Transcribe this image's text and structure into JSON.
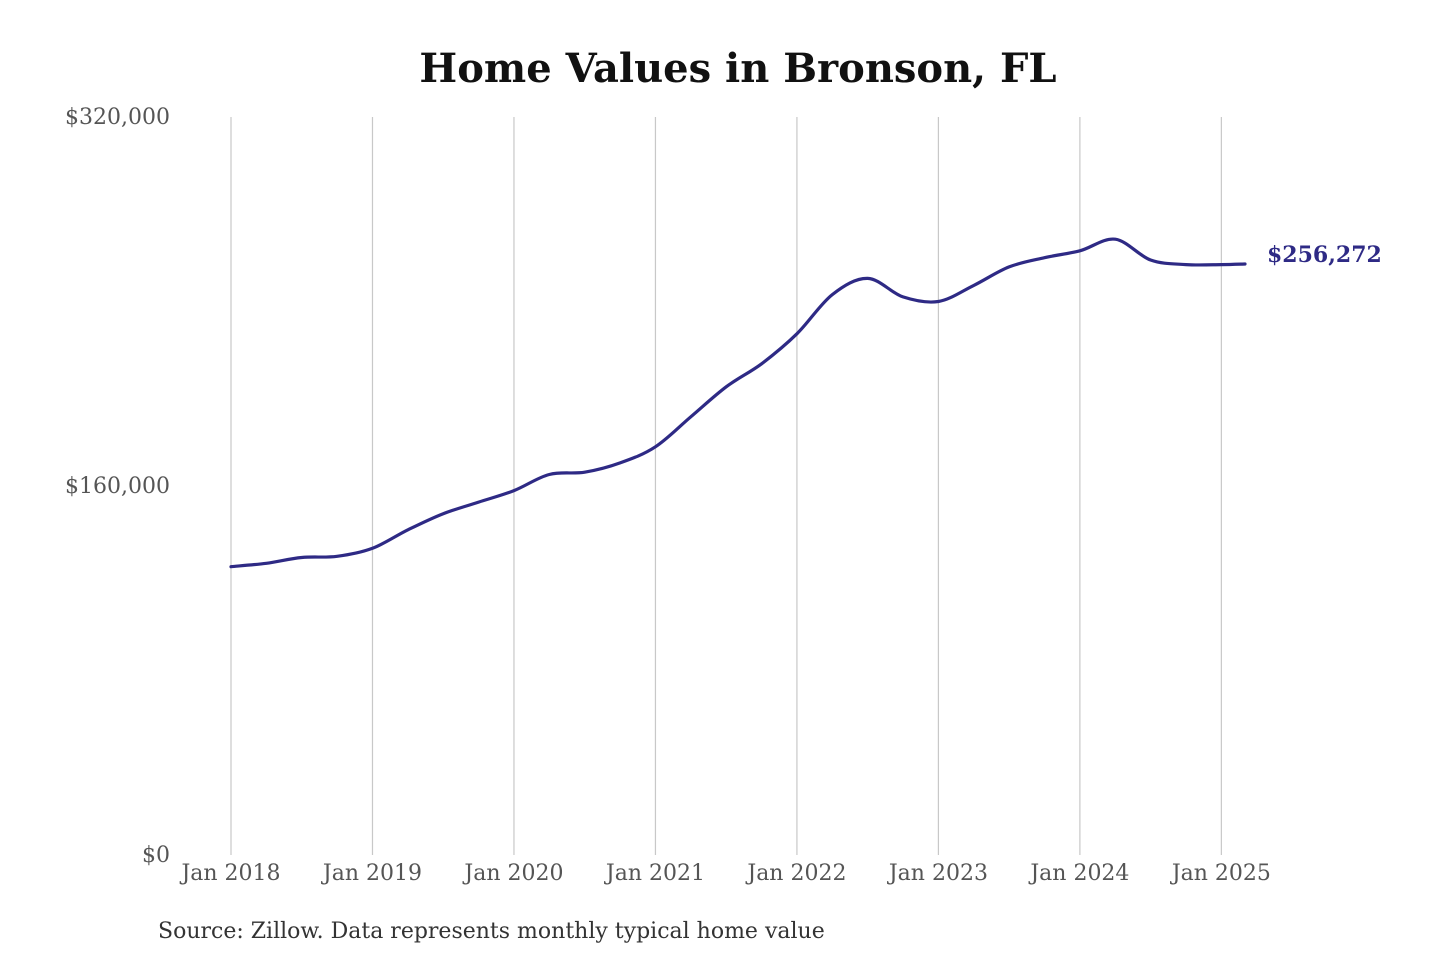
{
  "chart_data": {
    "type": "line",
    "title": "Home Values in Bronson, FL",
    "source": "Source: Zillow. Data represents monthly typical home value",
    "xlabel": "",
    "ylabel": "",
    "ylim": [
      0,
      320000
    ],
    "yticks": [
      {
        "value": 0,
        "label": "$0"
      },
      {
        "value": 160000,
        "label": "$160,000"
      },
      {
        "value": 320000,
        "label": "$320,000"
      }
    ],
    "xticks": [
      {
        "value": 2018.0,
        "label": "Jan 2018"
      },
      {
        "value": 2019.0,
        "label": "Jan 2019"
      },
      {
        "value": 2020.0,
        "label": "Jan 2020"
      },
      {
        "value": 2021.0,
        "label": "Jan 2021"
      },
      {
        "value": 2022.0,
        "label": "Jan 2022"
      },
      {
        "value": 2023.0,
        "label": "Jan 2023"
      },
      {
        "value": 2024.0,
        "label": "Jan 2024"
      },
      {
        "value": 2025.0,
        "label": "Jan 2025"
      }
    ],
    "xlim": [
      2018.0,
      2025.167
    ],
    "grid": "vertical",
    "line_color": "#2e2a85",
    "end_label": "$256,272",
    "series": [
      {
        "points": [
          [
            2018.0,
            125000
          ],
          [
            2018.25,
            126500
          ],
          [
            2018.5,
            129000
          ],
          [
            2018.75,
            129500
          ],
          [
            2019.0,
            133000
          ],
          [
            2019.25,
            141000
          ],
          [
            2019.5,
            148000
          ],
          [
            2019.75,
            153000
          ],
          [
            2020.0,
            158000
          ],
          [
            2020.25,
            165000
          ],
          [
            2020.5,
            166000
          ],
          [
            2020.75,
            170000
          ],
          [
            2021.0,
            177000
          ],
          [
            2021.25,
            190000
          ],
          [
            2021.5,
            203000
          ],
          [
            2021.75,
            213000
          ],
          [
            2022.0,
            226000
          ],
          [
            2022.25,
            243000
          ],
          [
            2022.5,
            250000
          ],
          [
            2022.75,
            242000
          ],
          [
            2023.0,
            240000
          ],
          [
            2023.25,
            247000
          ],
          [
            2023.5,
            255000
          ],
          [
            2023.75,
            259000
          ],
          [
            2024.0,
            262000
          ],
          [
            2024.25,
            267000
          ],
          [
            2024.5,
            258000
          ],
          [
            2024.75,
            256000
          ],
          [
            2025.0,
            256000
          ],
          [
            2025.167,
            256272
          ]
        ]
      }
    ]
  }
}
